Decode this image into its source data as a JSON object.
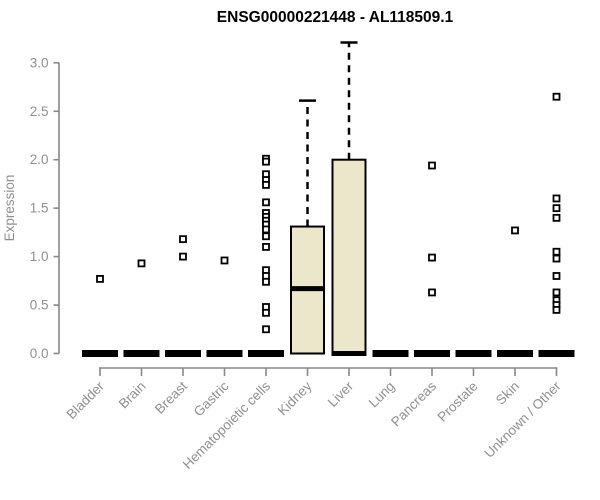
{
  "colors": {
    "background": "#ffffff",
    "box_fill": "#ECE7CB",
    "box_stroke": "#000000",
    "median": "#000000",
    "whisker": "#000000",
    "outlier_fill": "#ffffff",
    "axis": "#898989",
    "tick_label": "#8f8f8f",
    "title": "#000000"
  },
  "chart_data": {
    "type": "boxplot",
    "title": "ENSG00000221448 - AL118509.1",
    "ylabel": "Expression",
    "ylim": [
      0.0,
      3.25
    ],
    "yticks": [
      0.0,
      0.5,
      1.0,
      1.5,
      2.0,
      2.5,
      3.0
    ],
    "grid": false,
    "categories": [
      "Bladder",
      "Brain",
      "Breast",
      "Gastric",
      "Hematopoietic cells",
      "Kidney",
      "Liver",
      "Lung",
      "Pancreas",
      "Prostate",
      "Skin",
      "Unknown / Other"
    ],
    "boxes": [
      {
        "category": "Bladder",
        "q1": 0,
        "median": 0,
        "q3": 0,
        "whisker_low": 0,
        "whisker_high": 0,
        "outliers": [
          0.77
        ]
      },
      {
        "category": "Brain",
        "q1": 0,
        "median": 0,
        "q3": 0,
        "whisker_low": 0,
        "whisker_high": 0,
        "outliers": [
          0.93
        ]
      },
      {
        "category": "Breast",
        "q1": 0,
        "median": 0,
        "q3": 0,
        "whisker_low": 0,
        "whisker_high": 0,
        "outliers": [
          1.18,
          1.0
        ]
      },
      {
        "category": "Gastric",
        "q1": 0,
        "median": 0,
        "q3": 0,
        "whisker_low": 0,
        "whisker_high": 0,
        "outliers": [
          0.96
        ]
      },
      {
        "category": "Hematopoietic cells",
        "q1": 0,
        "median": 0,
        "q3": 0,
        "whisker_low": 0,
        "whisker_high": 0,
        "outliers": [
          2.01,
          1.98,
          1.85,
          1.79,
          1.74,
          1.56,
          1.45,
          1.41,
          1.37,
          1.33,
          1.28,
          1.21,
          1.1,
          0.86,
          0.8,
          0.74,
          0.48,
          0.42,
          0.25
        ]
      },
      {
        "category": "Kidney",
        "q1": 0,
        "median": 0.67,
        "q3": 1.31,
        "whisker_low": 0,
        "whisker_high": 2.61,
        "outliers": []
      },
      {
        "category": "Liver",
        "q1": 0,
        "median": 0,
        "q3": 2.0,
        "whisker_low": 0,
        "whisker_high": 3.21,
        "outliers": []
      },
      {
        "category": "Lung",
        "q1": 0,
        "median": 0,
        "q3": 0,
        "whisker_low": 0,
        "whisker_high": 0,
        "outliers": []
      },
      {
        "category": "Pancreas",
        "q1": 0,
        "median": 0,
        "q3": 0,
        "whisker_low": 0,
        "whisker_high": 0,
        "outliers": [
          1.94,
          0.99,
          0.63
        ]
      },
      {
        "category": "Prostate",
        "q1": 0,
        "median": 0,
        "q3": 0,
        "whisker_low": 0,
        "whisker_high": 0,
        "outliers": []
      },
      {
        "category": "Skin",
        "q1": 0,
        "median": 0,
        "q3": 0,
        "whisker_low": 0,
        "whisker_high": 0,
        "outliers": [
          1.27
        ]
      },
      {
        "category": "Unknown / Other",
        "q1": 0,
        "median": 0,
        "q3": 0,
        "whisker_low": 0,
        "whisker_high": 0,
        "outliers": [
          2.65,
          1.6,
          1.5,
          1.4,
          1.05,
          0.98,
          0.8,
          0.63,
          0.55,
          0.5,
          0.45
        ]
      }
    ]
  }
}
